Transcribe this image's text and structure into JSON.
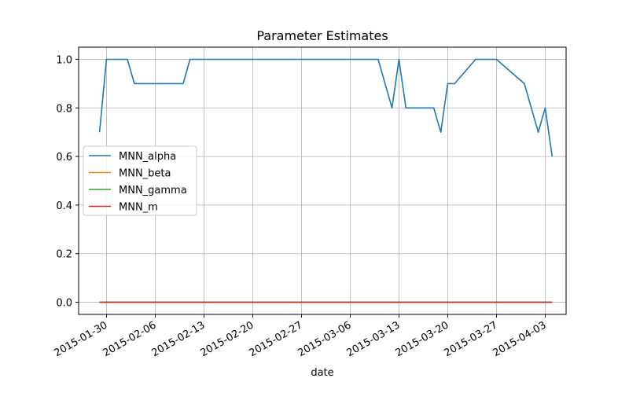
{
  "chart_data": {
    "type": "line",
    "title": "Parameter Estimates",
    "xlabel": "date",
    "ylabel": "",
    "x_ticks": [
      "2015-01-30",
      "2015-02-06",
      "2015-02-13",
      "2015-02-20",
      "2015-02-27",
      "2015-03-06",
      "2015-03-13",
      "2015-03-20",
      "2015-03-27",
      "2015-04-03"
    ],
    "x_range": [
      "2015-01-26",
      "2015-04-06"
    ],
    "y_ticks": [
      "0.0",
      "0.2",
      "0.4",
      "0.6",
      "0.8",
      "1.0"
    ],
    "ylim": [
      -0.05,
      1.05
    ],
    "grid": true,
    "legend_position": "center-left",
    "colors": {
      "MNN_alpha": "#1f77b4",
      "MNN_beta": "#ff7f0e",
      "MNN_gamma": "#2ca02c",
      "MNN_m": "#d62728"
    },
    "series": [
      {
        "name": "MNN_alpha",
        "x": [
          "2015-01-29",
          "2015-01-30",
          "2015-02-02",
          "2015-02-03",
          "2015-02-10",
          "2015-02-11",
          "2015-03-10",
          "2015-03-12",
          "2015-03-13",
          "2015-03-14",
          "2015-03-18",
          "2015-03-19",
          "2015-03-20",
          "2015-03-21",
          "2015-03-24",
          "2015-03-27",
          "2015-03-31",
          "2015-04-02",
          "2015-04-03",
          "2015-04-04"
        ],
        "values": [
          0.7,
          1.0,
          1.0,
          0.9,
          0.9,
          1.0,
          1.0,
          0.8,
          1.0,
          0.8,
          0.8,
          0.7,
          0.9,
          0.9,
          1.0,
          1.0,
          0.9,
          0.7,
          0.8,
          0.6
        ]
      },
      {
        "name": "MNN_beta",
        "x": [
          "2015-01-29",
          "2015-04-04"
        ],
        "values": [
          0.0,
          0.0
        ]
      },
      {
        "name": "MNN_gamma",
        "x": [
          "2015-01-29",
          "2015-04-04"
        ],
        "values": [
          0.0,
          0.0
        ]
      },
      {
        "name": "MNN_m",
        "x": [
          "2015-01-29",
          "2015-04-04"
        ],
        "values": [
          0.0,
          0.0
        ]
      }
    ]
  }
}
